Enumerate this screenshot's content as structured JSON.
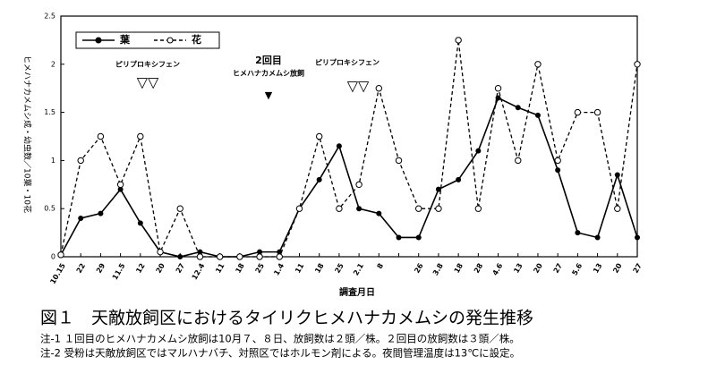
{
  "chart_data": {
    "type": "line",
    "ylabel": "ヒメハナカメムシ成・幼虫数／10葉・10花",
    "xlabel": "調査月日",
    "categories": [
      "10.15",
      "22",
      "29",
      "11.5",
      "12",
      "20",
      "27",
      "12.4",
      "11",
      "18",
      "25",
      "1.4",
      "11",
      "18",
      "25",
      "2.1",
      "8",
      null,
      "26",
      "3.8",
      "18",
      "28",
      "4.6",
      "13",
      "20",
      "27",
      "5.6",
      "13",
      "20",
      "27"
    ],
    "series": [
      {
        "name": "葉",
        "color": "#000000",
        "values": [
          0.02,
          0.4,
          0.45,
          0.7,
          0.35,
          0.05,
          0,
          0.05,
          0,
          0,
          0.05,
          0.05,
          0.5,
          0.8,
          1.15,
          0.5,
          0.45,
          0.2,
          0.2,
          0.7,
          0.8,
          1.1,
          1.65,
          1.55,
          1.47,
          0.9,
          0.25,
          0.2,
          0.85,
          0.2
        ]
      },
      {
        "name": "花",
        "color": "#000000",
        "values": [
          0.02,
          1.0,
          1.25,
          0.75,
          1.25,
          0.05,
          0.5,
          0,
          0,
          0,
          0,
          0,
          0.5,
          1.25,
          0.5,
          0.75,
          1.75,
          1.0,
          0.5,
          0.5,
          2.25,
          0.5,
          1.75,
          1.0,
          2.0,
          1.0,
          1.5,
          1.5,
          0.5,
          2.0
        ]
      }
    ],
    "ylim": [
      0,
      2.5
    ],
    "yticks": [
      0,
      0.5,
      1,
      1.5,
      2,
      2.5
    ],
    "annotations": [
      "ピリプロキシフェン",
      "▽▽",
      "2回目",
      "ヒメハナカメムシ放飼",
      "▼",
      "ピリプロキシフェン",
      "▽▽"
    ],
    "caption": [
      "図１　天敵放飼区におけるタイリクヒメハナカメムシの発生推移",
      "注-1 １回目のヒメハナカメムシ放飼は10月７、８日、放飼数は２頭／株。２回目の放飼数は３頭／株。",
      "注-2 受粉は天敵放飼区ではマルハナバチ、対照区ではホルモン剤による。夜間管理温度は13℃に設定。"
    ]
  }
}
